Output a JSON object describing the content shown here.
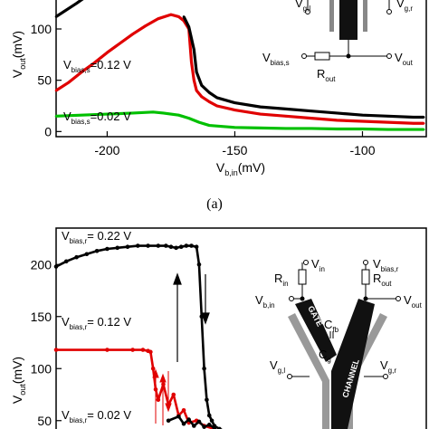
{
  "caption_a": "(a)",
  "chart_data": [
    {
      "type": "line",
      "panel": "a",
      "xlabel": {
        "main": "V",
        "sub": "b,in",
        "unit": "(mV)"
      },
      "ylabel": {
        "main": "V",
        "sub": "out",
        "unit": "(mV)"
      },
      "xlim": [
        -220,
        -75
      ],
      "ylim": [
        -5,
        130
      ],
      "xticks": [
        -200,
        -150,
        -100
      ],
      "yticks": [
        0,
        50,
        100
      ],
      "annotations": [
        {
          "main": "V",
          "sub": "bias,s",
          "text": "=0.12 V"
        },
        {
          "main": "V",
          "sub": "bias,s",
          "text": "=0.02 V"
        }
      ],
      "series": [
        {
          "color": "#000000",
          "x": [
            -220,
            -212,
            -208
          ],
          "y": [
            112,
            125,
            132
          ]
        },
        {
          "color": "#e00000",
          "x": [
            -220,
            -215,
            -210,
            -205,
            -200,
            -195,
            -190,
            -185,
            -180,
            -175,
            -172,
            -170,
            -168,
            -167,
            -166,
            -165,
            -163,
            -160,
            -157,
            -150,
            -140,
            -130,
            -120,
            -110,
            -100,
            -90,
            -80,
            -76
          ],
          "y": [
            40,
            48,
            58,
            67,
            77,
            86,
            95,
            103,
            110,
            114,
            112,
            108,
            100,
            68,
            50,
            40,
            34,
            29,
            25,
            21,
            17,
            15,
            13,
            11,
            10,
            9,
            8,
            8
          ]
        },
        {
          "color": "#000000",
          "x": [
            -170,
            -168,
            -166,
            -165,
            -163,
            -160,
            -157,
            -150,
            -140,
            -130,
            -120,
            -110,
            -100,
            -90,
            -80,
            -76
          ],
          "y": [
            112,
            102,
            80,
            58,
            45,
            38,
            33,
            28,
            24,
            22,
            20,
            18,
            16,
            15,
            14,
            14
          ]
        },
        {
          "color": "#00c000",
          "x": [
            -220,
            -210,
            -200,
            -190,
            -182,
            -178,
            -172,
            -168,
            -164,
            -160,
            -155,
            -150,
            -140,
            -130,
            -120,
            -110,
            -100,
            -90,
            -80,
            -76
          ],
          "y": [
            15,
            16,
            17,
            18,
            19,
            18,
            16,
            13,
            9,
            6,
            5,
            4,
            3.5,
            3,
            3,
            2.5,
            2.5,
            2,
            2,
            2
          ]
        }
      ]
    },
    {
      "type": "line",
      "panel": "b",
      "ylabel": {
        "main": "V",
        "sub": "out",
        "unit": "(mV)"
      },
      "xlim": [
        -220,
        -75
      ],
      "ylim": [
        35,
        235
      ],
      "yticks": [
        50,
        100,
        150,
        200
      ],
      "annotations": [
        {
          "main": "V",
          "sub": "bias,r",
          "text": "= 0.22 V"
        },
        {
          "main": "V",
          "sub": "bias,r",
          "text": "= 0.12 V"
        },
        {
          "main": "V",
          "sub": "bias,r",
          "text": "= 0.02 V"
        }
      ],
      "series": [
        {
          "color": "#000000",
          "x": [
            -220,
            -216,
            -212,
            -208,
            -204,
            -200,
            -196,
            -192,
            -188,
            -184,
            -180,
            -177,
            -175,
            -173,
            -171,
            -169,
            -167,
            -165,
            -164,
            -163,
            -162,
            -161,
            -160,
            -159,
            -158,
            -156,
            -154,
            -150
          ],
          "y": [
            198,
            203,
            207,
            210,
            213,
            215,
            216,
            217,
            218,
            218,
            218,
            218,
            217,
            216,
            217,
            218,
            218,
            217,
            200,
            150,
            100,
            70,
            55,
            50,
            45,
            42,
            40,
            38
          ]
        },
        {
          "color": "#e00000",
          "x": [
            -220,
            -200,
            -190,
            -186,
            -184,
            -183,
            -182,
            -181,
            -180,
            -178,
            -176,
            -174,
            -172,
            -170,
            -168,
            -165,
            -162,
            -158
          ],
          "y": [
            118,
            118,
            118,
            118,
            117,
            116,
            100,
            80,
            70,
            85,
            65,
            75,
            55,
            60,
            48,
            50,
            45,
            42
          ]
        },
        {
          "color": "#000000",
          "x": [
            -176,
            -172,
            -170,
            -168,
            -166,
            -164,
            -162,
            -160,
            -158
          ],
          "y": [
            50,
            54,
            47,
            51,
            45,
            49,
            44,
            46,
            43
          ]
        }
      ]
    }
  ],
  "circuit_a": {
    "vg_left": {
      "main": "V",
      "sub": "g,l"
    },
    "vg_right": {
      "main": "V",
      "sub": "g,r"
    },
    "vbias": {
      "main": "V",
      "sub": "bias,s"
    },
    "rout": {
      "main": "R",
      "sub": "out"
    },
    "vout": {
      "main": "V",
      "sub": "out"
    }
  },
  "circuit_b": {
    "rin": {
      "main": "R",
      "sub": "in"
    },
    "vin": {
      "main": "V",
      "sub": "in"
    },
    "vbias": {
      "main": "V",
      "sub": "bias,r"
    },
    "rout": {
      "main": "R",
      "sub": "out"
    },
    "vbin": {
      "main": "V",
      "sub": "b,in"
    },
    "vout": {
      "main": "V",
      "sub": "out"
    },
    "gate": "GATE",
    "channel": "CHANNEL",
    "cfb": {
      "main": "C",
      "sub": "fb"
    },
    "cg": {
      "main": "C",
      "sub": "g"
    },
    "vg_left": {
      "main": "V",
      "sub": "g,l"
    },
    "vg_right": {
      "main": "V",
      "sub": "g,r"
    }
  }
}
